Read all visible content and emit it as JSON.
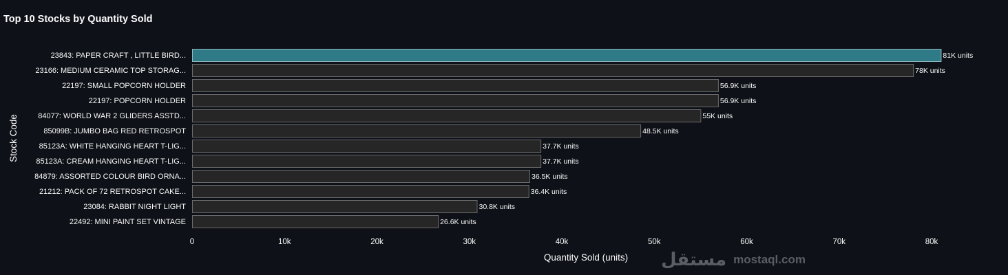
{
  "chart_data": {
    "type": "bar",
    "orientation": "horizontal",
    "title": "Top 10 Stocks by Quantity Sold",
    "xlabel": "Quantity Sold (units)",
    "ylabel": "Stock Code",
    "xlim": [
      0,
      85000
    ],
    "xticks": [
      0,
      10000,
      20000,
      30000,
      40000,
      50000,
      60000,
      70000,
      80000
    ],
    "xtick_labels": [
      "0",
      "10k",
      "20k",
      "30k",
      "40k",
      "50k",
      "60k",
      "70k",
      "80k"
    ],
    "categories": [
      "23843: PAPER CRAFT , LITTLE BIRD...",
      "23166: MEDIUM CERAMIC TOP STORAG...",
      "22197: SMALL POPCORN HOLDER",
      "22197: POPCORN HOLDER",
      "84077: WORLD WAR 2 GLIDERS ASSTD...",
      "85099B: JUMBO BAG RED RETROSPOT",
      "85123A: WHITE HANGING HEART T-LIG...",
      "85123A: CREAM HANGING HEART T-LIG...",
      "84879: ASSORTED COLOUR BIRD ORNA...",
      "21212: PACK OF 72 RETROSPOT CAKE...",
      "23084: RABBIT NIGHT LIGHT",
      "22492: MINI PAINT SET VINTAGE"
    ],
    "values": [
      81000,
      78000,
      56900,
      56900,
      55000,
      48500,
      37700,
      37700,
      36500,
      36400,
      30800,
      26600
    ],
    "data_labels": [
      "81K units",
      "78K units",
      "56.9K units",
      "56.9K units",
      "55K units",
      "48.5K units",
      "37.7K units",
      "37.7K units",
      "36.5K units",
      "36.4K units",
      "30.8K units",
      "26.6K units"
    ],
    "highlight_index": 0,
    "colors": {
      "highlight": "#2e7b87",
      "bar": "#262626",
      "bar_border": "#6b6b6b",
      "background": "#0e1117",
      "text": "#fafafa"
    },
    "grid": false
  },
  "watermark": {
    "arabic": "مستقل",
    "latin": "mostaql.com"
  }
}
